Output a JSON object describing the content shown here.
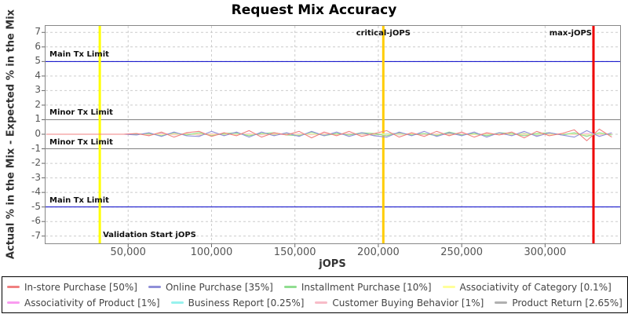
{
  "chart_data": {
    "type": "line",
    "title": "Request Mix Accuracy",
    "xlabel": "jOPS",
    "ylabel": "Actual % in the Mix - Expected % in the Mix",
    "xlim": [
      0,
      345000
    ],
    "ylim": [
      -7.5,
      7.5
    ],
    "grid": true,
    "legend_position": "bottom",
    "y_ticks": [
      7,
      6,
      5,
      4,
      3,
      2,
      1,
      0,
      -1,
      -2,
      -3,
      -4,
      -5,
      -6,
      -7
    ],
    "x_ticks": [
      {
        "value": 50000,
        "label": "50,000"
      },
      {
        "value": 100000,
        "label": "100,000"
      },
      {
        "value": 150000,
        "label": "150,000"
      },
      {
        "value": 200000,
        "label": "200,000"
      },
      {
        "value": 250000,
        "label": "250,000"
      },
      {
        "value": 300000,
        "label": "300,000"
      }
    ],
    "limit_lines": [
      {
        "label": "Main Tx Limit",
        "value": 5,
        "color": "#0000c8"
      },
      {
        "label": "Minor Tx Limit",
        "value": 1,
        "color": "#808080"
      },
      {
        "label": "Minor Tx Limit",
        "value": -1,
        "color": "#808080"
      },
      {
        "label": "Main Tx Limit",
        "value": -5,
        "color": "#0000c8"
      }
    ],
    "event_lines": [
      {
        "label": "Validation Start jOPS",
        "value": 33000,
        "color": "#ffff00",
        "label_pos": "bottom-right"
      },
      {
        "label": "critical-jOPS",
        "value": 203000,
        "color": "#ffcc00",
        "label_pos": "top-center"
      },
      {
        "label": "max-jOPS",
        "value": 329000,
        "color": "#ee0000",
        "label_pos": "top-left"
      }
    ],
    "flat_lead_in": {
      "from": 1000,
      "to": 47500,
      "value": 0
    },
    "x_start": 55000,
    "x_step": 7500,
    "series": [
      {
        "name": "In-store Purchase [50%]",
        "color": "#f08080",
        "values": [
          0.05,
          -0.1,
          0.15,
          -0.2,
          0.1,
          0.2,
          -0.15,
          0.1,
          -0.1,
          0.25,
          -0.2,
          0.1,
          -0.05,
          0.2,
          -0.25,
          0.15,
          -0.1,
          0.2,
          -0.15,
          0.05,
          0.25,
          -0.2,
          0.1,
          -0.15,
          0.2,
          -0.1,
          0.15,
          -0.2,
          0.1,
          -0.05,
          0.15,
          -0.25,
          0.2,
          -0.1,
          0.05,
          0.3,
          -0.45,
          0.35,
          -0.2
        ]
      },
      {
        "name": "Online Purchase [35%]",
        "color": "#8f8fd8",
        "values": [
          -0.05,
          0.1,
          -0.15,
          0.15,
          -0.1,
          -0.15,
          0.2,
          -0.1,
          0.15,
          -0.2,
          0.15,
          -0.1,
          0.1,
          -0.15,
          0.2,
          -0.1,
          0.15,
          -0.15,
          0.1,
          -0.1,
          -0.2,
          0.15,
          -0.1,
          0.2,
          -0.15,
          0.1,
          -0.1,
          0.15,
          -0.2,
          0.1,
          -0.1,
          0.2,
          -0.15,
          0.1,
          -0.05,
          -0.2,
          0.25,
          -0.15,
          0.1
        ]
      },
      {
        "name": "Installment Purchase [10%]",
        "color": "#90dd90",
        "values": [
          0,
          0.05,
          -0.1,
          0.1,
          -0.05,
          0.1,
          -0.1,
          0.05,
          0.1,
          -0.1,
          0.05,
          0.1,
          -0.05,
          -0.1,
          0.15,
          -0.1,
          0.05,
          -0.05,
          0.1,
          0.05,
          -0.1,
          0.1,
          -0.05,
          0.05,
          -0.1,
          0.15,
          -0.05,
          0.05,
          -0.1,
          0.1,
          0.05,
          -0.1,
          0.05,
          0.1,
          -0.05,
          0.1,
          -0.15,
          0.1,
          -0.05
        ]
      },
      {
        "name": "Associativity of Category [0.1%]",
        "color": "#ffff99",
        "values": [
          0,
          0.01,
          -0.01,
          0,
          0.01,
          0,
          -0.01,
          0.01,
          0,
          -0.01,
          0.01,
          0,
          0,
          -0.01,
          0.01,
          0,
          0.01,
          -0.01,
          0,
          0.01,
          -0.01,
          0,
          0.01,
          0,
          -0.01,
          0.01,
          0,
          -0.01,
          0,
          0.01,
          -0.01,
          0.01,
          0,
          -0.01,
          0.01,
          0,
          -0.01,
          0.01,
          0
        ]
      },
      {
        "name": "Associativity of Product [1%]",
        "color": "#fa9cf0",
        "values": [
          0.02,
          -0.03,
          0.04,
          -0.02,
          0.03,
          -0.04,
          0.02,
          0.03,
          -0.02,
          0.04,
          -0.03,
          0.02,
          -0.04,
          0.03,
          -0.02,
          0.04,
          -0.03,
          0.02,
          -0.02,
          0.03,
          -0.04,
          0.02,
          0.03,
          -0.03,
          0.02,
          -0.04,
          0.04,
          -0.02,
          0.03,
          -0.03,
          0.02,
          -0.04,
          0.03,
          -0.02,
          0.04,
          -0.03,
          0.05,
          -0.04,
          0.02
        ]
      },
      {
        "name": "Business Report [0.25%]",
        "color": "#97f2ee",
        "values": [
          0.01,
          -0.02,
          0.02,
          -0.01,
          0.02,
          -0.02,
          0.01,
          -0.01,
          0.02,
          -0.02,
          0.01,
          0.02,
          -0.01,
          -0.02,
          0.02,
          -0.01,
          0.01,
          -0.02,
          0.02,
          -0.01,
          0.02,
          -0.02,
          0.01,
          -0.01,
          0.02,
          -0.02,
          0.01,
          0.02,
          -0.02,
          0.01,
          -0.01,
          0.02,
          -0.02,
          0.01,
          -0.02,
          0.02,
          -0.03,
          0.02,
          -0.01
        ]
      },
      {
        "name": "Customer Buying Behavior [1%]",
        "color": "#f8bcc8",
        "values": [
          0.03,
          -0.04,
          0.02,
          0.04,
          -0.03,
          0.02,
          -0.05,
          0.04,
          -0.02,
          0.03,
          -0.04,
          0.05,
          -0.03,
          0.02,
          -0.04,
          0.03,
          -0.02,
          0.05,
          -0.04,
          0.02,
          0.03,
          -0.05,
          0.04,
          -0.02,
          0.03,
          -0.04,
          0.02,
          0.05,
          -0.03,
          0.02,
          -0.04,
          0.03,
          -0.05,
          0.04,
          -0.02,
          0.05,
          -0.06,
          0.04,
          -0.03
        ]
      },
      {
        "name": "Product Return [2.65%]",
        "color": "#b0b0b0",
        "values": [
          0.04,
          -0.05,
          0.06,
          -0.04,
          0.05,
          -0.06,
          0.04,
          -0.05,
          0.06,
          -0.04,
          0.05,
          -0.06,
          0.07,
          -0.05,
          0.04,
          -0.06,
          0.05,
          -0.04,
          0.06,
          -0.05,
          0.04,
          0.06,
          -0.05,
          0.04,
          -0.06,
          0.05,
          -0.04,
          0.06,
          -0.05,
          0.04,
          -0.06,
          0.07,
          -0.08,
          0.06,
          -0.04,
          0.05,
          -0.05,
          0.04,
          -0.02
        ]
      }
    ],
    "style": {
      "grid_color": "#cccccc",
      "border_color": "#888888",
      "tick_color": "#666666",
      "event_line_width": 3
    }
  }
}
